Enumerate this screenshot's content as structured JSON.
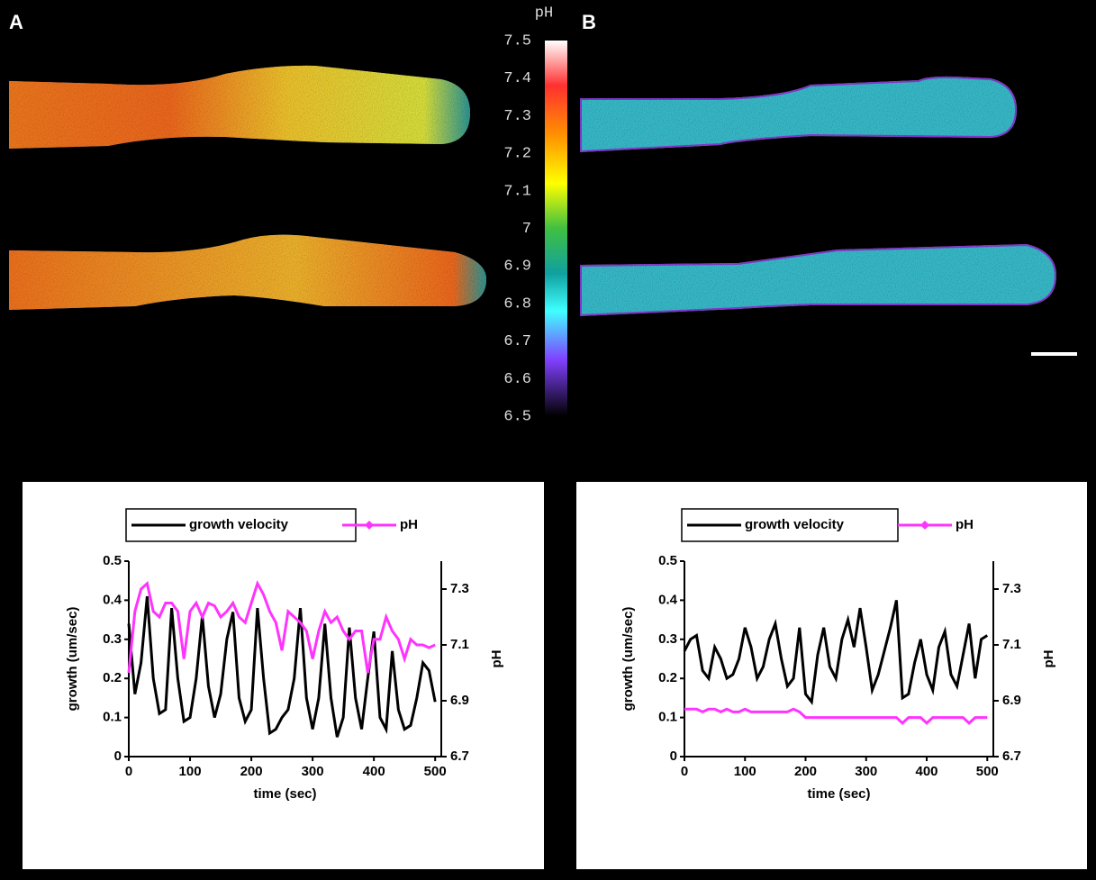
{
  "panel_labels": [
    "A",
    "B"
  ],
  "colorbar": {
    "title": "pH",
    "ticks": [
      6.5,
      6.6,
      6.7,
      6.8,
      6.9,
      7,
      7.1,
      7.2,
      7.3,
      7.4,
      7.5
    ],
    "lim": [
      6.5,
      7.5
    ]
  },
  "chart_data": [
    {
      "type": "line",
      "x_label": "time (sec)",
      "y_label": "growth (um/sec)",
      "y2_label": "pH",
      "x": [
        0,
        10,
        20,
        30,
        40,
        50,
        60,
        70,
        80,
        90,
        100,
        110,
        120,
        130,
        140,
        150,
        160,
        170,
        180,
        190,
        200,
        210,
        220,
        230,
        240,
        250,
        260,
        270,
        280,
        290,
        300,
        310,
        320,
        330,
        340,
        350,
        360,
        370,
        380,
        390,
        400,
        410,
        420,
        430,
        440,
        450,
        460,
        470,
        480,
        490,
        500
      ],
      "xlim": [
        0,
        510
      ],
      "xticks": [
        0,
        100,
        200,
        300,
        400,
        500
      ],
      "ylim": [
        0,
        0.5
      ],
      "yticks": [
        0,
        0.1,
        0.2,
        0.3,
        0.4,
        0.5
      ],
      "y2lim": [
        6.7,
        7.4
      ],
      "y2ticks": [
        6.7,
        6.9,
        7.1,
        7.3
      ],
      "series": [
        {
          "name": "growth velocity",
          "color": "#000000",
          "values": [
            0.34,
            0.16,
            0.24,
            0.41,
            0.2,
            0.11,
            0.12,
            0.38,
            0.2,
            0.09,
            0.1,
            0.2,
            0.36,
            0.18,
            0.1,
            0.16,
            0.3,
            0.37,
            0.15,
            0.09,
            0.12,
            0.38,
            0.2,
            0.06,
            0.07,
            0.1,
            0.12,
            0.2,
            0.38,
            0.15,
            0.07,
            0.15,
            0.34,
            0.15,
            0.05,
            0.1,
            0.33,
            0.15,
            0.07,
            0.2,
            0.32,
            0.1,
            0.07,
            0.27,
            0.12,
            0.07,
            0.08,
            0.15,
            0.24,
            0.22,
            0.14
          ]
        },
        {
          "name": "pH",
          "color": "#ff33ff",
          "axis": "y2",
          "values": [
            7.0,
            7.22,
            7.3,
            7.32,
            7.22,
            7.2,
            7.25,
            7.25,
            7.22,
            7.05,
            7.22,
            7.25,
            7.2,
            7.25,
            7.24,
            7.2,
            7.22,
            7.25,
            7.2,
            7.18,
            7.25,
            7.32,
            7.28,
            7.22,
            7.18,
            7.08,
            7.22,
            7.2,
            7.18,
            7.15,
            7.05,
            7.15,
            7.22,
            7.18,
            7.2,
            7.15,
            7.12,
            7.15,
            7.15,
            7.0,
            7.12,
            7.12,
            7.2,
            7.15,
            7.12,
            7.05,
            7.12,
            7.1,
            7.1,
            7.09,
            7.1
          ]
        }
      ]
    },
    {
      "type": "line",
      "x_label": "time (sec)",
      "y_label": "growth (um/sec)",
      "y2_label": "pH",
      "x": [
        0,
        10,
        20,
        30,
        40,
        50,
        60,
        70,
        80,
        90,
        100,
        110,
        120,
        130,
        140,
        150,
        160,
        170,
        180,
        190,
        200,
        210,
        220,
        230,
        240,
        250,
        260,
        270,
        280,
        290,
        300,
        310,
        320,
        330,
        340,
        350,
        360,
        370,
        380,
        390,
        400,
        410,
        420,
        430,
        440,
        450,
        460,
        470,
        480,
        490,
        500
      ],
      "xlim": [
        0,
        510
      ],
      "xticks": [
        0,
        100,
        200,
        300,
        400,
        500
      ],
      "ylim": [
        0,
        0.5
      ],
      "yticks": [
        0,
        0.1,
        0.2,
        0.3,
        0.4,
        0.5
      ],
      "y2lim": [
        6.7,
        7.4
      ],
      "y2ticks": [
        6.7,
        6.9,
        7.1,
        7.3
      ],
      "series": [
        {
          "name": "growth velocity",
          "color": "#000000",
          "values": [
            0.27,
            0.3,
            0.31,
            0.22,
            0.2,
            0.28,
            0.25,
            0.2,
            0.21,
            0.25,
            0.33,
            0.28,
            0.2,
            0.23,
            0.3,
            0.34,
            0.25,
            0.18,
            0.2,
            0.33,
            0.16,
            0.14,
            0.26,
            0.33,
            0.23,
            0.2,
            0.3,
            0.35,
            0.28,
            0.38,
            0.28,
            0.17,
            0.21,
            0.27,
            0.33,
            0.4,
            0.15,
            0.16,
            0.24,
            0.3,
            0.21,
            0.17,
            0.28,
            0.32,
            0.21,
            0.18,
            0.26,
            0.34,
            0.2,
            0.3,
            0.31
          ]
        },
        {
          "name": "pH",
          "color": "#ff33ff",
          "axis": "y2",
          "values": [
            6.87,
            6.87,
            6.87,
            6.86,
            6.87,
            6.87,
            6.86,
            6.87,
            6.86,
            6.86,
            6.87,
            6.86,
            6.86,
            6.86,
            6.86,
            6.86,
            6.86,
            6.86,
            6.87,
            6.86,
            6.84,
            6.84,
            6.84,
            6.84,
            6.84,
            6.84,
            6.84,
            6.84,
            6.84,
            6.84,
            6.84,
            6.84,
            6.84,
            6.84,
            6.84,
            6.84,
            6.82,
            6.84,
            6.84,
            6.84,
            6.82,
            6.84,
            6.84,
            6.84,
            6.84,
            6.84,
            6.84,
            6.82,
            6.84,
            6.84,
            6.84
          ]
        }
      ]
    }
  ]
}
